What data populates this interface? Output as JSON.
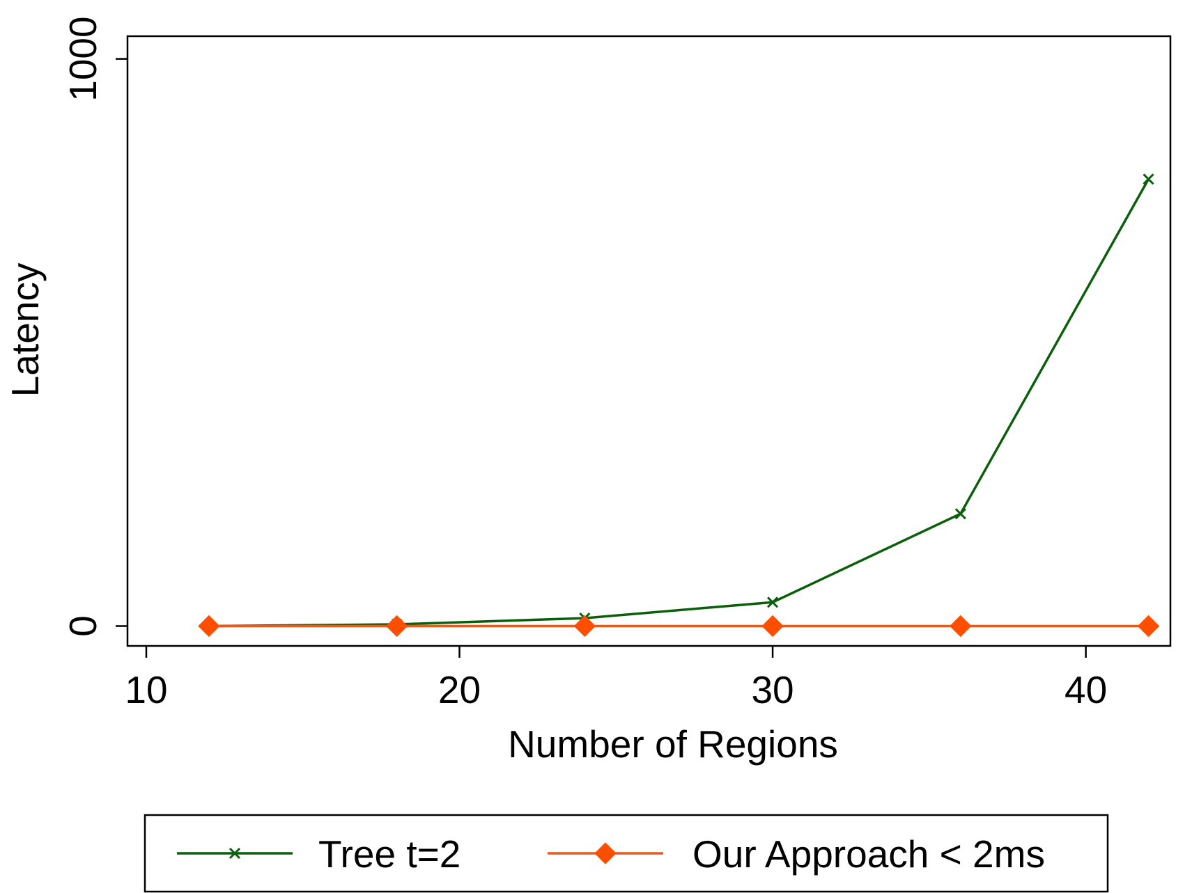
{
  "chart_data": {
    "type": "line",
    "title": "",
    "xlabel": "Number of Regions",
    "ylabel": "Latency",
    "xlim": [
      9.4,
      42.7
    ],
    "ylim": [
      -35,
      1040
    ],
    "xticks": [
      10,
      20,
      30,
      40
    ],
    "yticks": [
      0,
      1000
    ],
    "x_tick_labels": [
      "10",
      "20",
      "30",
      "40"
    ],
    "y_tick_labels": [
      "0",
      "1000"
    ],
    "grid": false,
    "legend_position": "bottom",
    "series": [
      {
        "name": "Tree t=2",
        "color": "#0b5e0b",
        "marker": "x",
        "x": [
          12,
          18,
          24,
          30,
          36,
          42
        ],
        "y": [
          0,
          3,
          14,
          42,
          198,
          788
        ]
      },
      {
        "name": "Our Approach < 2ms",
        "color": "#ff4e00",
        "line_color": "#e65a1e",
        "marker": "diamond",
        "x": [
          12,
          18,
          24,
          30,
          36,
          42
        ],
        "y": [
          0,
          0,
          0,
          0,
          0,
          0
        ]
      }
    ]
  }
}
